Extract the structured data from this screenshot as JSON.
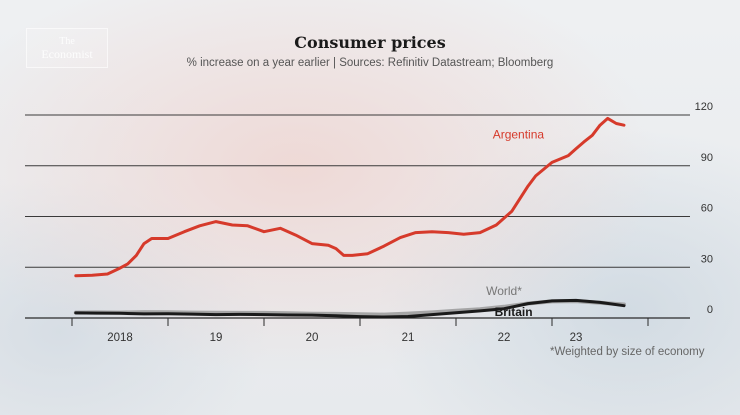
{
  "brand": {
    "logo_line1": "The",
    "logo_line2": "Economist"
  },
  "chart_data": {
    "type": "line",
    "title": "Consumer prices",
    "subtitle": "% increase on a year earlier | Sources: Refinitiv Datastream; Bloomberg",
    "footnote": "*Weighted by size of economy",
    "ylim": [
      0,
      120
    ],
    "yticks": [
      0,
      30,
      60,
      90,
      120
    ],
    "ytick_labels": [
      "0",
      "30",
      "60",
      "90",
      "120"
    ],
    "xlim": [
      2017.5,
      2024.0
    ],
    "xtick_boundaries": [
      2017.5,
      2018.5,
      2019.5,
      2020.5,
      2021.5,
      2022.5,
      2023.5
    ],
    "x_labels": [
      {
        "x": 2018.0,
        "label": "2018"
      },
      {
        "x": 2019.0,
        "label": "19"
      },
      {
        "x": 2020.0,
        "label": "20"
      },
      {
        "x": 2021.0,
        "label": "21"
      },
      {
        "x": 2022.0,
        "label": "22"
      },
      {
        "x": 2022.75,
        "label": "23"
      }
    ],
    "grid": true,
    "colors": {
      "Argentina": "#d63a2b",
      "World*": "#9a9a9a",
      "Britain": "#1a1a1a"
    },
    "series": [
      {
        "name": "Argentina",
        "x": [
          2017.54,
          2017.71,
          2017.87,
          2018.0,
          2018.08,
          2018.17,
          2018.25,
          2018.33,
          2018.5,
          2018.67,
          2018.83,
          2019.0,
          2019.17,
          2019.33,
          2019.5,
          2019.67,
          2019.83,
          2020.0,
          2020.17,
          2020.25,
          2020.33,
          2020.42,
          2020.58,
          2020.75,
          2020.92,
          2021.08,
          2021.25,
          2021.42,
          2021.58,
          2021.75,
          2021.92,
          2022.08,
          2022.25,
          2022.33,
          2022.5,
          2022.67,
          2022.75,
          2022.83,
          2022.92,
          2023.0,
          2023.08,
          2023.17,
          2023.25
        ],
        "y": [
          25,
          25.3,
          26,
          29.5,
          32,
          37,
          44,
          47,
          47,
          51,
          54.5,
          57,
          55,
          54.5,
          51,
          53,
          49,
          44,
          43,
          41,
          37,
          37,
          38,
          42.5,
          47.5,
          50.5,
          51,
          50.5,
          49.5,
          50.5,
          55,
          63,
          78,
          84,
          92,
          96,
          100,
          104,
          108,
          114,
          118,
          115,
          114
        ]
      },
      {
        "name": "World*",
        "x": [
          2017.54,
          2017.75,
          2018.0,
          2018.25,
          2018.5,
          2018.75,
          2019.0,
          2019.25,
          2019.5,
          2019.75,
          2020.0,
          2020.25,
          2020.5,
          2020.75,
          2021.0,
          2021.25,
          2021.5,
          2021.75,
          2022.0,
          2022.25,
          2022.5,
          2022.75,
          2023.0,
          2023.25
        ],
        "y": [
          3.2,
          3.3,
          3.2,
          3.5,
          3.4,
          3.2,
          3.1,
          3.0,
          3.0,
          2.8,
          2.5,
          2.4,
          2.2,
          2.0,
          2.6,
          3.3,
          4.3,
          5.2,
          6.6,
          8.6,
          9.8,
          10.0,
          9.0,
          8.0
        ]
      },
      {
        "name": "Britain",
        "x": [
          2017.54,
          2017.75,
          2018.0,
          2018.25,
          2018.5,
          2018.75,
          2019.0,
          2019.25,
          2019.5,
          2019.75,
          2020.0,
          2020.25,
          2020.5,
          2020.75,
          2021.0,
          2021.25,
          2021.5,
          2021.75,
          2022.0,
          2022.25,
          2022.5,
          2022.75,
          2023.0,
          2023.25
        ],
        "y": [
          3.0,
          2.9,
          2.8,
          2.4,
          2.5,
          2.3,
          2.0,
          2.1,
          2.0,
          1.8,
          1.7,
          1.3,
          0.8,
          0.6,
          0.9,
          2.0,
          3.1,
          4.2,
          5.5,
          8.5,
          10.1,
          10.4,
          9.2,
          7.3
        ]
      }
    ],
    "series_labels": [
      "Argentina",
      "World*",
      "Britain"
    ]
  }
}
